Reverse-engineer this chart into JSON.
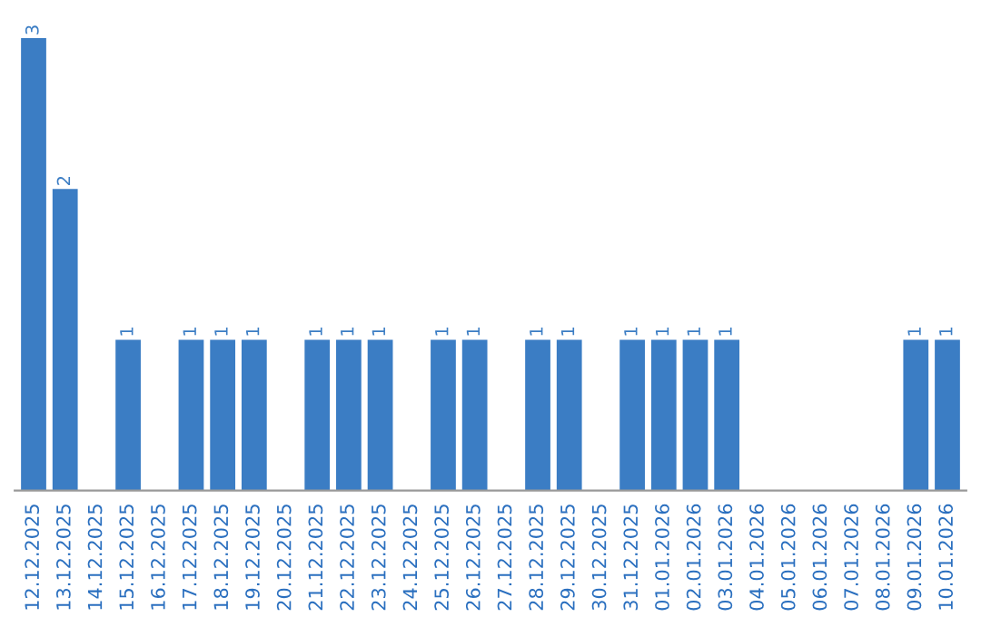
{
  "chart_data": {
    "type": "bar",
    "categories": [
      "12.12.2025",
      "13.12.2025",
      "14.12.2025",
      "15.12.2025",
      "16.12.2025",
      "17.12.2025",
      "18.12.2025",
      "19.12.2025",
      "20.12.2025",
      "21.12.2025",
      "22.12.2025",
      "23.12.2025",
      "24.12.2025",
      "25.12.2025",
      "26.12.2025",
      "27.12.2025",
      "28.12.2025",
      "29.12.2025",
      "30.12.2025",
      "31.12.2025",
      "01.01.2026",
      "02.01.2026",
      "03.01.2026",
      "04.01.2026",
      "05.01.2026",
      "06.01.2026",
      "07.01.2026",
      "08.01.2026",
      "09.01.2026",
      "10.01.2026"
    ],
    "values": [
      3,
      2,
      0,
      1,
      0,
      1,
      1,
      1,
      0,
      1,
      1,
      1,
      0,
      1,
      1,
      0,
      1,
      1,
      0,
      1,
      1,
      1,
      1,
      0,
      0,
      0,
      0,
      0,
      1,
      1
    ],
    "value_labels": [
      "3",
      "2",
      null,
      "1",
      null,
      "1",
      "1",
      "1",
      null,
      "1",
      "1",
      "1",
      null,
      "1",
      "1",
      null,
      "1",
      "1",
      null,
      "1",
      "1",
      "1",
      "1",
      null,
      null,
      null,
      null,
      null,
      "1",
      "1"
    ],
    "color": "#3b7dc4",
    "tick_labels": "x",
    "grid": false,
    "legend": false
  }
}
